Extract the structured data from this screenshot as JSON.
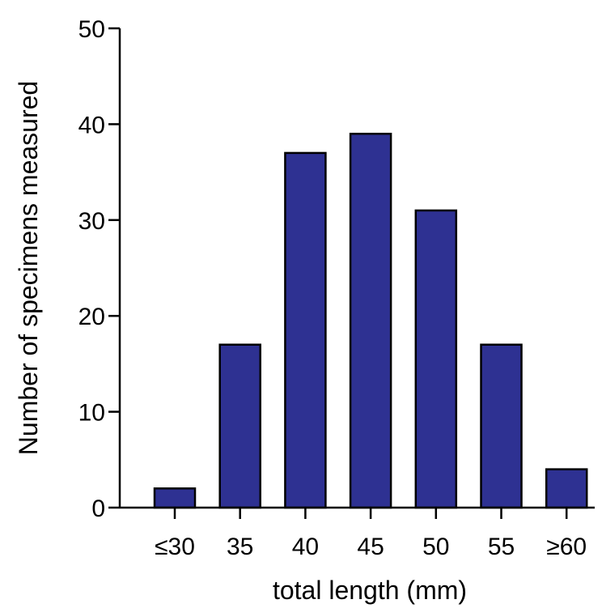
{
  "chart_data": {
    "type": "bar",
    "title": "",
    "xlabel": "total length (mm)",
    "ylabel": "Number of specimens measured",
    "categories": [
      "≤30",
      "35",
      "40",
      "45",
      "50",
      "55",
      "≥60"
    ],
    "values": [
      2,
      17,
      37,
      39,
      31,
      17,
      4
    ],
    "ylim": [
      0,
      50
    ],
    "yticks": [
      0,
      10,
      20,
      30,
      40,
      50
    ],
    "grid": false,
    "legend": "none",
    "colors": {
      "bar_fill": "#2e3192",
      "bar_stroke": "#000000",
      "axis": "#000000"
    }
  }
}
